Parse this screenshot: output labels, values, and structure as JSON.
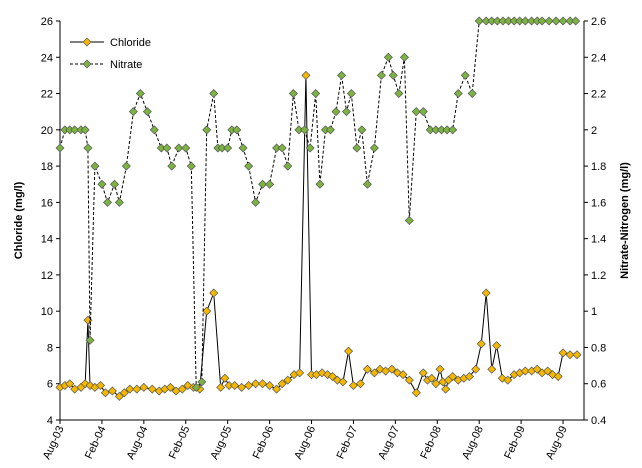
{
  "chart_data": {
    "type": "line",
    "title": "",
    "xlabel": "",
    "ylabel_left": "Chloride (mg/l)",
    "ylabel_right": "Nitrate-Nitrogen (mg/l)",
    "ylim_left": [
      4,
      26
    ],
    "ylim_right": [
      0.4,
      2.6
    ],
    "yticks_left": [
      "4",
      "6",
      "8",
      "10",
      "12",
      "14",
      "16",
      "18",
      "20",
      "22",
      "24",
      "26"
    ],
    "yticks_right": [
      "0.4",
      "0.6",
      "0.8",
      "1",
      "1.2",
      "1.4",
      "1.6",
      "1.8",
      "2",
      "2.2",
      "2.4",
      "2.6"
    ],
    "x_ticks": [
      "Aug-03",
      "Feb-04",
      "Aug-04",
      "Feb-05",
      "Aug-05",
      "Feb-06",
      "Aug-06",
      "Feb-07",
      "Aug-07",
      "Feb-08",
      "Aug-08",
      "Feb-09",
      "Aug-09"
    ],
    "xlim_months": [
      0,
      75
    ],
    "legend_position": "top-left",
    "grid": false,
    "series": [
      {
        "name": "Chloride",
        "axis": "left",
        "line_style": "solid",
        "marker_color": "#f5b800",
        "x": [
          0.0,
          0.7,
          1.4,
          2.1,
          3.0,
          3.6,
          4.0,
          4.3,
          5.0,
          5.8,
          6.5,
          7.5,
          8.5,
          9.2,
          10.0,
          11.0,
          12.0,
          13.2,
          14.2,
          15.0,
          15.8,
          16.6,
          17.5,
          18.3,
          19.1,
          20.0,
          21.0,
          22.0,
          23.0,
          23.6,
          24.2,
          25.0,
          26.0,
          27.0,
          28.0,
          29.0,
          30.0,
          31.0,
          31.8,
          32.6,
          33.5,
          34.3,
          35.2,
          36.0,
          36.7,
          37.5,
          38.3,
          39.0,
          39.7,
          40.5,
          41.3,
          42.0,
          43.0,
          44.0,
          45.0,
          45.8,
          46.6,
          47.5,
          48.3,
          49.1,
          50.0,
          51.0,
          52.0,
          52.6,
          53.2,
          53.8,
          54.4,
          54.8,
          55.2,
          55.6,
          56.2,
          57.0,
          57.8,
          58.6,
          59.5,
          60.3,
          61.0,
          61.8,
          62.5,
          63.3,
          64.1,
          65.0,
          65.8,
          66.6,
          67.5,
          68.3,
          69.0,
          69.8,
          70.5,
          71.3,
          72.0,
          73.0,
          74.0
        ],
        "y": [
          5.8,
          5.9,
          6.0,
          5.7,
          5.8,
          6.0,
          9.5,
          5.9,
          5.8,
          5.9,
          5.5,
          5.6,
          5.3,
          5.5,
          5.7,
          5.7,
          5.8,
          5.7,
          5.6,
          5.7,
          5.8,
          5.6,
          5.7,
          5.9,
          5.8,
          5.7,
          10.0,
          11.0,
          5.8,
          6.3,
          5.9,
          5.9,
          5.8,
          5.9,
          6.0,
          6.0,
          5.9,
          5.7,
          6.0,
          6.2,
          6.5,
          6.6,
          23.0,
          6.5,
          6.5,
          6.6,
          6.5,
          6.4,
          6.2,
          6.1,
          7.8,
          5.9,
          6.0,
          6.8,
          6.6,
          6.8,
          6.7,
          6.8,
          6.6,
          6.5,
          6.2,
          5.5,
          6.6,
          6.2,
          6.3,
          6.0,
          6.8,
          6.1,
          5.7,
          6.2,
          6.4,
          6.2,
          6.3,
          6.4,
          6.8,
          8.2,
          11.0,
          6.8,
          8.1,
          6.3,
          6.2,
          6.5,
          6.6,
          6.7,
          6.7,
          6.8,
          6.6,
          6.7,
          6.5,
          6.4,
          7.7,
          7.6,
          7.6
        ]
      },
      {
        "name": "Nitrate",
        "axis": "right",
        "line_style": "dashed",
        "marker_color": "#7cb342",
        "x": [
          0.0,
          0.7,
          1.4,
          2.1,
          3.0,
          3.6,
          4.0,
          4.3,
          5.0,
          6.0,
          6.8,
          7.8,
          8.5,
          9.5,
          10.5,
          11.5,
          12.5,
          13.5,
          14.5,
          15.3,
          16.0,
          17.0,
          18.0,
          18.8,
          19.5,
          20.3,
          21.0,
          22.0,
          22.6,
          23.2,
          24.0,
          24.6,
          25.3,
          26.2,
          27.0,
          28.0,
          29.0,
          30.0,
          31.0,
          31.8,
          32.6,
          33.4,
          34.2,
          35.0,
          35.8,
          36.6,
          37.2,
          38.0,
          38.7,
          39.5,
          40.3,
          41.0,
          41.7,
          42.5,
          43.2,
          44.0,
          45.0,
          46.0,
          47.0,
          47.7,
          48.5,
          49.3,
          50.0,
          51.0,
          52.0,
          53.0,
          53.8,
          54.6,
          55.4,
          56.2,
          57.0,
          58.0,
          59.0,
          60.0,
          61.0,
          61.8,
          62.6,
          63.4,
          64.2,
          65.0,
          65.8,
          66.6,
          67.5,
          68.3,
          69.0,
          70.0,
          71.0,
          72.0,
          73.0,
          73.8
        ],
        "y": [
          1.9,
          2.0,
          2.0,
          2.0,
          2.0,
          2.0,
          1.9,
          0.84,
          1.8,
          1.7,
          1.6,
          1.7,
          1.6,
          1.8,
          2.1,
          2.2,
          2.1,
          2.0,
          1.9,
          1.9,
          1.8,
          1.9,
          1.9,
          1.8,
          0.58,
          0.61,
          2.0,
          2.2,
          1.9,
          1.9,
          1.9,
          2.0,
          2.0,
          1.9,
          1.8,
          1.6,
          1.7,
          1.7,
          1.9,
          1.9,
          1.8,
          2.2,
          2.0,
          2.0,
          1.9,
          2.2,
          1.7,
          2.0,
          2.0,
          2.1,
          2.3,
          2.1,
          2.2,
          1.9,
          2.0,
          1.7,
          1.9,
          2.3,
          2.4,
          2.3,
          2.2,
          2.4,
          1.5,
          2.1,
          2.1,
          2.0,
          2.0,
          2.0,
          2.0,
          2.0,
          2.2,
          2.3,
          2.2,
          2.6,
          2.6,
          2.6,
          2.6,
          2.6,
          2.6,
          2.6,
          2.6,
          2.6,
          2.6,
          2.6,
          2.6,
          2.6,
          2.6,
          2.6,
          2.6,
          2.6
        ]
      }
    ]
  }
}
